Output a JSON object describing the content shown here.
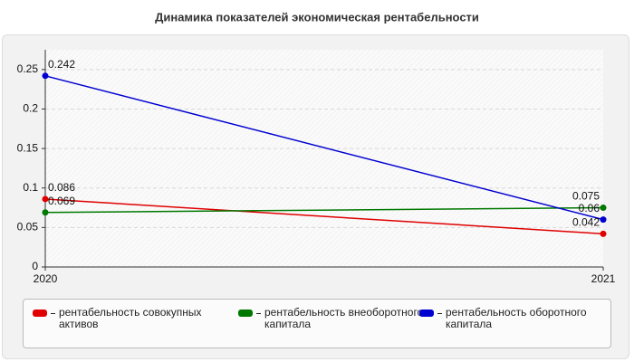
{
  "chart_data": {
    "type": "line",
    "title": "Динамика показателей экономическая рентабельности",
    "categories": [
      "2020",
      "2021"
    ],
    "series": [
      {
        "name": "рентабельность совокупных активов",
        "color": "#e00000",
        "values": [
          0.086,
          0.042
        ]
      },
      {
        "name": "рентабельность внеоборотного капитала",
        "color": "#007800",
        "values": [
          0.069,
          0.075
        ]
      },
      {
        "name": "рентабельность оборотного капитала",
        "color": "#0000d0",
        "values": [
          0.242,
          0.06
        ]
      }
    ],
    "ylim": [
      0,
      0.275
    ],
    "yticks": [
      0,
      0.05,
      0.1,
      0.15,
      0.2,
      0.25
    ],
    "grid": true,
    "data_labels": true
  }
}
